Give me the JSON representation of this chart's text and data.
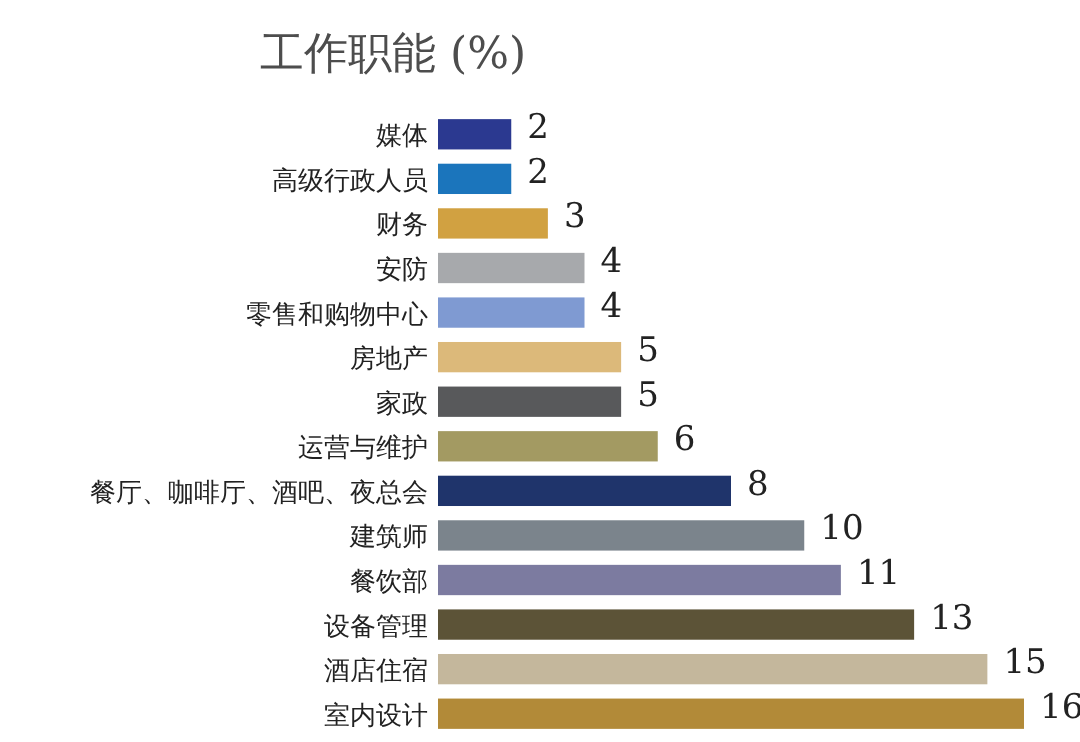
{
  "chart_data": {
    "type": "bar",
    "orientation": "horizontal",
    "title": "工作职能 (%)",
    "categories": [
      "媒体",
      "高级行政人员",
      "财务",
      "安防",
      "零售和购物中心",
      "房地产",
      "家政",
      "运营与维护",
      "餐厅、咖啡厅、酒吧、夜总会",
      "建筑师",
      "餐饮部",
      "设备管理",
      "酒店住宿",
      "室内设计"
    ],
    "values": [
      2,
      2,
      3,
      4,
      4,
      5,
      5,
      6,
      8,
      10,
      11,
      13,
      15,
      16
    ],
    "colors": [
      "#2b3990",
      "#1b75bc",
      "#d1a141",
      "#a7a9ac",
      "#7f9ad2",
      "#dcb97a",
      "#58595b",
      "#a39a62",
      "#1f346b",
      "#7b848c",
      "#7c7ba0",
      "#5c5337",
      "#c4b79c",
      "#b28a38"
    ],
    "data_labels": true
  }
}
